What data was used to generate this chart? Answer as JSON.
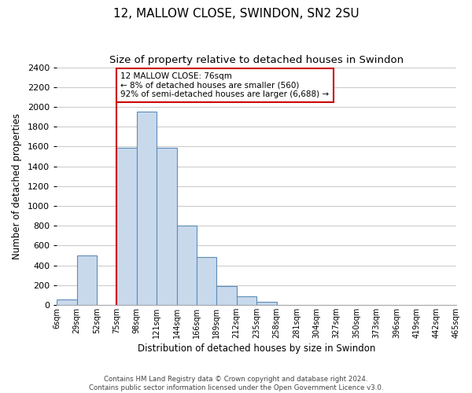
{
  "title": "12, MALLOW CLOSE, SWINDON, SN2 2SU",
  "subtitle": "Size of property relative to detached houses in Swindon",
  "xlabel": "Distribution of detached houses by size in Swindon",
  "ylabel": "Number of detached properties",
  "footer_lines": [
    "Contains HM Land Registry data © Crown copyright and database right 2024.",
    "Contains public sector information licensed under the Open Government Licence v3.0."
  ],
  "bin_labels": [
    "6sqm",
    "29sqm",
    "52sqm",
    "75sqm",
    "98sqm",
    "121sqm",
    "144sqm",
    "166sqm",
    "189sqm",
    "212sqm",
    "235sqm",
    "258sqm",
    "281sqm",
    "304sqm",
    "327sqm",
    "350sqm",
    "373sqm",
    "396sqm",
    "419sqm",
    "442sqm",
    "465sqm"
  ],
  "bar_heights": [
    55,
    500,
    0,
    1590,
    1950,
    1590,
    800,
    480,
    190,
    90,
    30,
    0,
    0,
    0,
    0,
    0,
    0,
    0,
    0,
    0
  ],
  "bar_color": "#c9d9ec",
  "bar_edge_color": "#5b8db8",
  "grid_color": "#cccccc",
  "vline_x": 3.0,
  "vline_color": "#cc0000",
  "annotation_text": "12 MALLOW CLOSE: 76sqm\n← 8% of detached houses are smaller (560)\n92% of semi-detached houses are larger (6,688) →",
  "annotation_box_edge": "#cc0000",
  "annotation_box_bg": "#ffffff",
  "ylim": [
    0,
    2400
  ],
  "yticks": [
    0,
    200,
    400,
    600,
    800,
    1000,
    1200,
    1400,
    1600,
    1800,
    2000,
    2200,
    2400
  ]
}
